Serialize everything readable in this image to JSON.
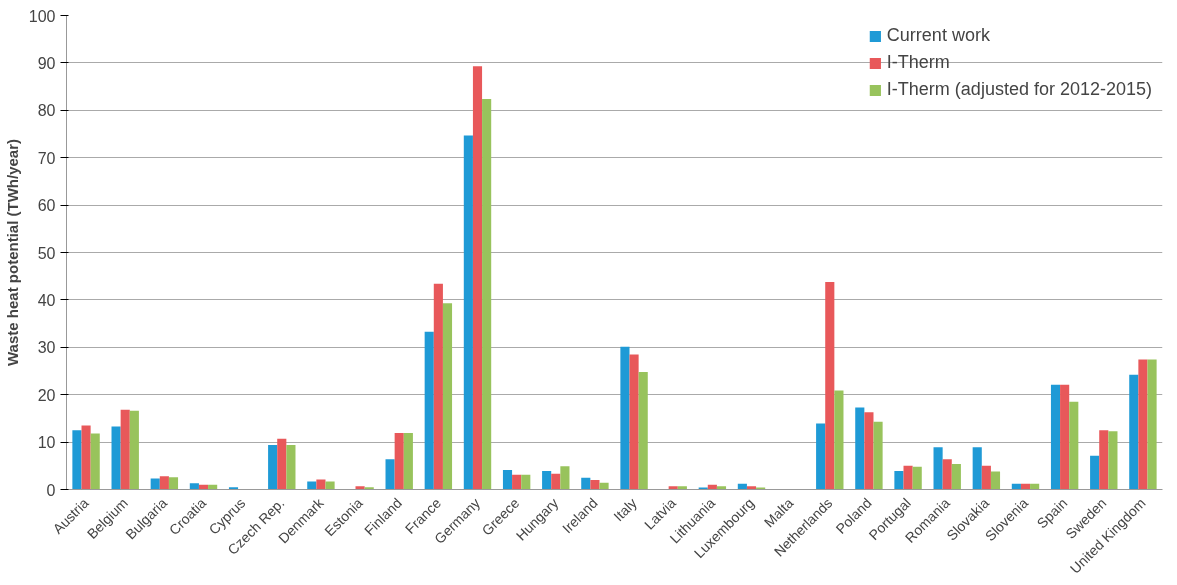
{
  "chart_data": {
    "type": "bar",
    "ylabel": "Waste heat potential (TWh/year)",
    "categories": [
      "Austria",
      "Belgium",
      "Bulgaria",
      "Croatia",
      "Cyprus",
      "Czech Rep.",
      "Denmark",
      "Estonia",
      "Finland",
      "France",
      "Germany",
      "Greece",
      "Hungary",
      "Ireland",
      "Italy",
      "Latvia",
      "Lithuania",
      "Luxembourg",
      "Malta",
      "Netherlands",
      "Poland",
      "Portugal",
      "Romania",
      "Slovakia",
      "Slovenia",
      "Spain",
      "Sweden",
      "United Kingdom"
    ],
    "series": [
      {
        "name": "Current work",
        "color": "#1f9ad6",
        "values": [
          12.5,
          13.3,
          2.3,
          1.3,
          0.5,
          9.4,
          1.7,
          0,
          6.4,
          33.3,
          74.7,
          4.1,
          3.9,
          2.5,
          30.1,
          0,
          0.4,
          1.2,
          0,
          13.9,
          17.3,
          3.9,
          8.9,
          8.9,
          1.2,
          22.1,
          7.1,
          24.2
        ]
      },
      {
        "name": "I-Therm",
        "color": "#e8585a",
        "values": [
          13.5,
          16.8,
          2.8,
          1.0,
          0,
          10.7,
          2.1,
          0.7,
          11.9,
          43.4,
          89.3,
          3.1,
          3.3,
          2.0,
          28.5,
          0.7,
          1.0,
          0.7,
          0,
          43.8,
          16.3,
          5.0,
          6.4,
          5.0,
          1.2,
          22.1,
          12.5,
          27.4
        ]
      },
      {
        "name": "I-Therm (adjusted for 2012-2015)",
        "color": "#98c35c",
        "values": [
          11.8,
          16.6,
          2.6,
          1.0,
          0,
          9.4,
          1.7,
          0.5,
          11.9,
          39.3,
          82.4,
          3.1,
          4.9,
          1.4,
          24.8,
          0.7,
          0.7,
          0.4,
          0,
          20.9,
          14.3,
          4.8,
          5.4,
          3.8,
          1.2,
          18.5,
          12.3,
          27.4
        ]
      }
    ],
    "ylim": [
      0,
      100
    ],
    "yticks": [
      0,
      10,
      20,
      30,
      40,
      50,
      60,
      70,
      80,
      90,
      100
    ],
    "grid": "y",
    "legend": "top right"
  }
}
